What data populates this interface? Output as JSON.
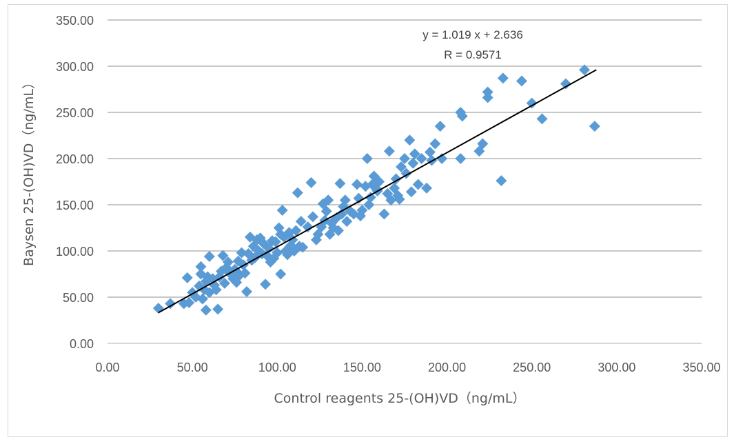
{
  "chart_data": {
    "type": "scatter",
    "xlabel": "Control reagents 25-(OH)VD（ng/mL）",
    "ylabel": "Baysen 25-(OH)VD（ng/mL）",
    "xlim": [
      0,
      350
    ],
    "ylim": [
      0,
      350
    ],
    "xticks": [
      "0.00",
      "50.00",
      "100.00",
      "150.00",
      "200.00",
      "250.00",
      "300.00",
      "350.00"
    ],
    "yticks": [
      "0.00",
      "50.00",
      "100.00",
      "150.00",
      "200.00",
      "250.00",
      "300.00",
      "350.00"
    ],
    "grid": "horizontal",
    "marker_color": "#5b9bd5",
    "trendline_color": "#000000",
    "trendline": {
      "slope": 1.019,
      "intercept": 2.636,
      "x_range": [
        30,
        288
      ]
    },
    "annotations": {
      "equation": "y = 1.019 x + 2.636",
      "r": "R = 0.9571"
    },
    "points": [
      [
        30,
        38
      ],
      [
        37,
        43
      ],
      [
        45,
        43
      ],
      [
        47,
        71
      ],
      [
        48,
        44
      ],
      [
        50,
        55
      ],
      [
        52,
        50
      ],
      [
        54,
        62
      ],
      [
        55,
        75
      ],
      [
        55,
        83
      ],
      [
        56,
        48
      ],
      [
        57,
        58
      ],
      [
        58,
        67
      ],
      [
        58,
        36
      ],
      [
        59,
        72
      ],
      [
        60,
        94
      ],
      [
        60,
        55
      ],
      [
        62,
        70
      ],
      [
        63,
        63
      ],
      [
        64,
        58
      ],
      [
        65,
        37
      ],
      [
        66,
        72
      ],
      [
        67,
        78
      ],
      [
        68,
        95
      ],
      [
        69,
        65
      ],
      [
        70,
        82
      ],
      [
        71,
        88
      ],
      [
        72,
        76
      ],
      [
        74,
        70
      ],
      [
        75,
        80
      ],
      [
        76,
        66
      ],
      [
        77,
        89
      ],
      [
        78,
        74
      ],
      [
        79,
        98
      ],
      [
        80,
        85
      ],
      [
        81,
        76
      ],
      [
        82,
        56
      ],
      [
        83,
        97
      ],
      [
        84,
        115
      ],
      [
        85,
        90
      ],
      [
        86,
        105
      ],
      [
        87,
        93
      ],
      [
        88,
        112
      ],
      [
        89,
        100
      ],
      [
        90,
        114
      ],
      [
        91,
        97
      ],
      [
        92,
        108
      ],
      [
        93,
        64
      ],
      [
        94,
        95
      ],
      [
        95,
        103
      ],
      [
        96,
        88
      ],
      [
        97,
        111
      ],
      [
        98,
        92
      ],
      [
        99,
        110
      ],
      [
        100,
        98
      ],
      [
        101,
        125
      ],
      [
        102,
        118
      ],
      [
        102,
        75
      ],
      [
        103,
        144
      ],
      [
        104,
        115
      ],
      [
        105,
        100
      ],
      [
        106,
        96
      ],
      [
        107,
        120
      ],
      [
        108,
        106
      ],
      [
        109,
        112
      ],
      [
        110,
        100
      ],
      [
        111,
        122
      ],
      [
        112,
        163
      ],
      [
        113,
        105
      ],
      [
        114,
        132
      ],
      [
        115,
        104
      ],
      [
        118,
        126
      ],
      [
        120,
        174
      ],
      [
        121,
        137
      ],
      [
        123,
        112
      ],
      [
        124,
        118
      ],
      [
        126,
        126
      ],
      [
        127,
        151
      ],
      [
        128,
        133
      ],
      [
        129,
        143
      ],
      [
        130,
        155
      ],
      [
        131,
        118
      ],
      [
        132,
        130
      ],
      [
        133,
        125
      ],
      [
        135,
        136
      ],
      [
        136,
        122
      ],
      [
        137,
        173
      ],
      [
        138,
        140
      ],
      [
        139,
        148
      ],
      [
        140,
        155
      ],
      [
        141,
        132
      ],
      [
        143,
        143
      ],
      [
        145,
        140
      ],
      [
        147,
        172
      ],
      [
        148,
        157
      ],
      [
        149,
        138
      ],
      [
        150,
        144
      ],
      [
        152,
        170
      ],
      [
        153,
        200
      ],
      [
        154,
        150
      ],
      [
        155,
        158
      ],
      [
        156,
        172
      ],
      [
        157,
        181
      ],
      [
        158,
        168
      ],
      [
        159,
        165
      ],
      [
        160,
        175
      ],
      [
        163,
        140
      ],
      [
        165,
        162
      ],
      [
        166,
        208
      ],
      [
        167,
        155
      ],
      [
        169,
        168
      ],
      [
        170,
        178
      ],
      [
        171,
        160
      ],
      [
        172,
        156
      ],
      [
        173,
        191
      ],
      [
        175,
        200
      ],
      [
        176,
        184
      ],
      [
        178,
        220
      ],
      [
        179,
        164
      ],
      [
        180,
        195
      ],
      [
        181,
        205
      ],
      [
        183,
        172
      ],
      [
        185,
        200
      ],
      [
        188,
        168
      ],
      [
        190,
        207
      ],
      [
        191,
        198
      ],
      [
        193,
        216
      ],
      [
        196,
        235
      ],
      [
        197,
        200
      ],
      [
        208,
        200
      ],
      [
        208,
        250
      ],
      [
        209,
        246
      ],
      [
        219,
        208
      ],
      [
        221,
        216
      ],
      [
        224,
        266
      ],
      [
        224,
        272
      ],
      [
        232,
        176
      ],
      [
        233,
        287
      ],
      [
        244,
        284
      ],
      [
        250,
        260
      ],
      [
        256,
        243
      ],
      [
        270,
        281
      ],
      [
        281,
        296
      ],
      [
        287,
        235
      ]
    ]
  }
}
